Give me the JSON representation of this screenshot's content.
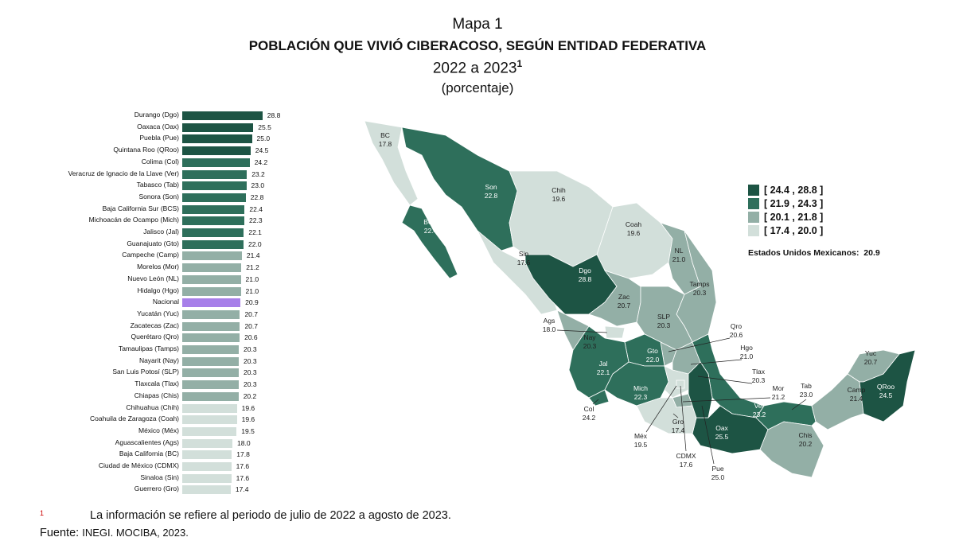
{
  "title": {
    "line1": "Mapa 1",
    "line2": "POBLACIÓN QUE VIVIÓ CIBERACOSO, SEGÚN ENTIDAD FEDERATIVA",
    "line3": "2022 a 2023",
    "line3_sup": "1",
    "line4": "(porcentaje)"
  },
  "colors": {
    "bin1": "#1d5444",
    "bin2": "#2e6f5b",
    "bin3": "#93afa6",
    "bin4": "#d2dfda",
    "national": "#a77fe9"
  },
  "chart_data": {
    "type": "bar",
    "orientation": "horizontal",
    "categories": [
      "Durango (Dgo)",
      "Oaxaca (Oax)",
      "Puebla (Pue)",
      "Quintana Roo (QRoo)",
      "Colima (Col)",
      "Veracruz de Ignacio de la Llave (Ver)",
      "Tabasco (Tab)",
      "Sonora (Son)",
      "Baja California Sur (BCS)",
      "Michoacán de Ocampo (Mich)",
      "Jalisco (Jal)",
      "Guanajuato (Gto)",
      "Campeche (Camp)",
      "Morelos (Mor)",
      "Nuevo León (NL)",
      "Hidalgo (Hgo)",
      "Nacional",
      "Yucatán (Yuc)",
      "Zacatecas (Zac)",
      "Querétaro (Qro)",
      "Tamaulipas (Tamps)",
      "Nayarit (Nay)",
      "San Luis Potosí (SLP)",
      "Tlaxcala (Tlax)",
      "Chiapas (Chis)",
      "Chihuahua (Chih)",
      "Coahuila de Zaragoza (Coah)",
      "México (Méx)",
      "Aguascalientes (Ags)",
      "Baja California (BC)",
      "Ciudad de México (CDMX)",
      "Sinaloa (Sin)",
      "Guerrero (Gro)"
    ],
    "values": [
      28.8,
      25.5,
      25.0,
      24.5,
      24.2,
      23.2,
      23.0,
      22.8,
      22.4,
      22.3,
      22.1,
      22.0,
      21.4,
      21.2,
      21.0,
      21.0,
      20.9,
      20.7,
      20.7,
      20.6,
      20.3,
      20.3,
      20.3,
      20.3,
      20.2,
      19.6,
      19.6,
      19.5,
      18.0,
      17.8,
      17.6,
      17.6,
      17.4
    ],
    "value_labels": [
      "28.8",
      "25.5",
      "25.0",
      "24.5",
      "24.2",
      "23.2",
      "23.0",
      "22.8",
      "22.4",
      "22.3",
      "22.1",
      "22.0",
      "21.4",
      "21.2",
      "21.0",
      "21.0",
      "20.9",
      "20.7",
      "20.7",
      "20.6",
      "20.3",
      "20.3",
      "20.3",
      "20.3",
      "20.2",
      "19.6",
      "19.6",
      "19.5",
      "18.0",
      "17.8",
      "17.6",
      "17.6",
      "17.4"
    ],
    "xlim": [
      0,
      30
    ],
    "legend": {
      "bins": [
        "[ 24.4 , 28.8 ]",
        "[ 21.9 , 24.3 ]",
        "[ 20.1 , 21.8 ]",
        "[ 17.4 , 20.0 ]"
      ],
      "placement": "right"
    },
    "national_label": "Estados Unidos Mexicanos:",
    "national_value": "20.9",
    "map": [
      {
        "abbr": "BC",
        "value": "17.8"
      },
      {
        "abbr": "Son",
        "value": "22.8"
      },
      {
        "abbr": "Chih",
        "value": "19.6"
      },
      {
        "abbr": "Coah",
        "value": "19.6"
      },
      {
        "abbr": "BCS",
        "value": "22.4"
      },
      {
        "abbr": "Sin",
        "value": "17.6"
      },
      {
        "abbr": "NL",
        "value": "21.0"
      },
      {
        "abbr": "Dgo",
        "value": "28.8"
      },
      {
        "abbr": "Tamps",
        "value": "20.3"
      },
      {
        "abbr": "Zac",
        "value": "20.7"
      },
      {
        "abbr": "SLP",
        "value": "20.3"
      },
      {
        "abbr": "Ags",
        "value": "18.0"
      },
      {
        "abbr": "Nay",
        "value": "20.3"
      },
      {
        "abbr": "Qro",
        "value": "20.6"
      },
      {
        "abbr": "Hgo",
        "value": "21.0"
      },
      {
        "abbr": "Gto",
        "value": "22.0"
      },
      {
        "abbr": "Jal",
        "value": "22.1"
      },
      {
        "abbr": "Tlax",
        "value": "20.3"
      },
      {
        "abbr": "Mich",
        "value": "22.3"
      },
      {
        "abbr": "Mor",
        "value": "21.2"
      },
      {
        "abbr": "Tab",
        "value": "23.0"
      },
      {
        "abbr": "Yuc",
        "value": "20.7"
      },
      {
        "abbr": "Camp",
        "value": "21.4"
      },
      {
        "abbr": "QRoo",
        "value": "24.5"
      },
      {
        "abbr": "Col",
        "value": "24.2"
      },
      {
        "abbr": "Ver",
        "value": "23.2"
      },
      {
        "abbr": "Oax",
        "value": "25.5"
      },
      {
        "abbr": "Chis",
        "value": "20.2"
      },
      {
        "abbr": "Gro",
        "value": "17.4"
      },
      {
        "abbr": "Méx",
        "value": "19.5"
      },
      {
        "abbr": "CDMX",
        "value": "17.6"
      },
      {
        "abbr": "Pue",
        "value": "25.0"
      }
    ]
  },
  "footnote": {
    "mark": "1",
    "text": "La información se refiere al periodo de julio de 2022 a agosto de 2023."
  },
  "source": {
    "label": "Fuente:",
    "text": "INEGI. MOCIBA, 2023."
  }
}
